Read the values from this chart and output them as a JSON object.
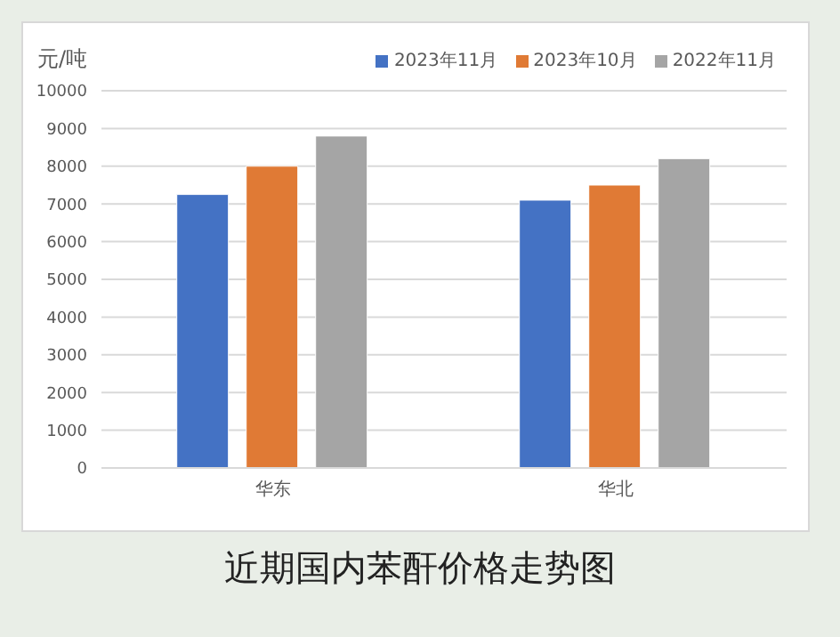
{
  "chart_data": {
    "type": "bar",
    "title": "近期国内苯酐价格走势图",
    "ylabel": "元/吨",
    "categories": [
      "华东",
      "华北"
    ],
    "series": [
      {
        "name": "2023年11月",
        "color": "#4472c4",
        "values": [
          7250,
          7100
        ]
      },
      {
        "name": "2023年10月",
        "color": "#e07a35",
        "values": [
          8000,
          7500
        ]
      },
      {
        "name": "2022年11月",
        "color": "#a5a5a5",
        "values": [
          8800,
          8200
        ]
      }
    ],
    "ylim": [
      0,
      10000
    ],
    "yticks": [
      0,
      1000,
      2000,
      3000,
      4000,
      5000,
      6000,
      7000,
      8000,
      9000,
      10000
    ],
    "grid": "y",
    "legend": "top right"
  }
}
